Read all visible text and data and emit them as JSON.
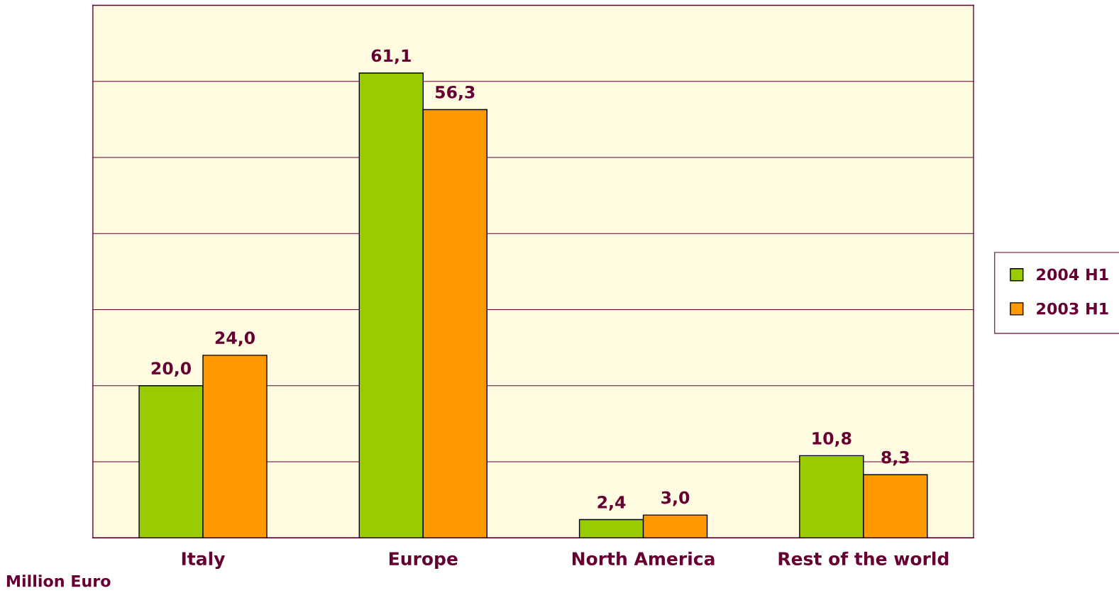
{
  "chart_data": {
    "type": "bar",
    "categories": [
      "Italy",
      "Europe",
      "North America",
      "Rest of the world"
    ],
    "series": [
      {
        "name": "2004 H1",
        "color": "#99cc00",
        "values": [
          20.0,
          61.1,
          2.4,
          10.8
        ],
        "value_labels": [
          "20,0",
          "61,1",
          "2,4",
          "10,8"
        ]
      },
      {
        "name": "2003 H1",
        "color": "#ff9900",
        "values": [
          24.0,
          56.3,
          3.0,
          8.3
        ],
        "value_labels": [
          "24,0",
          "56,3",
          "3,0",
          "8,3"
        ]
      }
    ],
    "ylim": [
      0,
      70
    ],
    "yticks": [
      {
        "value": 0,
        "label": null
      },
      {
        "value": 10,
        "label": null
      },
      {
        "value": 20,
        "label": null
      },
      {
        "value": 30,
        "label": null
      },
      {
        "value": 40,
        "label": null
      },
      {
        "value": 50,
        "label": null
      },
      {
        "value": 60,
        "label": null
      },
      {
        "value": 70,
        "label": null
      }
    ],
    "grid": "y",
    "legend": "right",
    "tick_labels": "x",
    "annotations": [
      "Million Euro"
    ]
  }
}
